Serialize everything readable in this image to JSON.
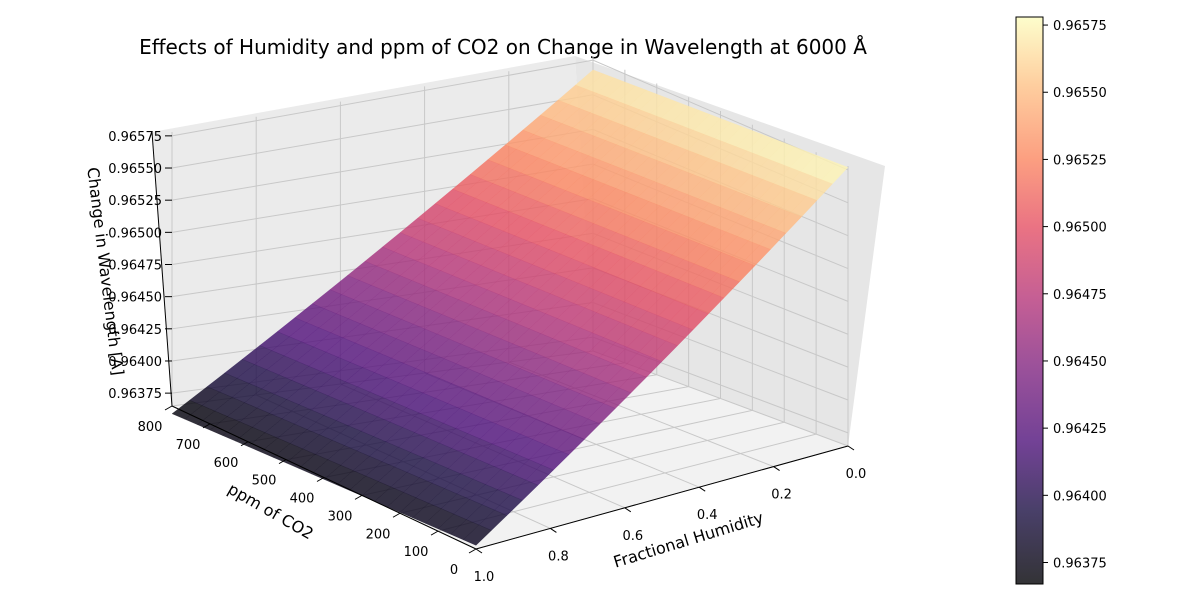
{
  "chart_data": {
    "type": "surface3d",
    "title": "Effects of Humidity and ppm of CO2 on Change in Wavelength at 6000 Å",
    "xlabel": "Fractional Humidity",
    "ylabel": "ppm of CO2",
    "zlabel": "Change in Wavelength [A]",
    "colormap": "magma",
    "x_ticks": [
      "0.0",
      "0.2",
      "0.4",
      "0.6",
      "0.8",
      "1.0"
    ],
    "y_ticks": [
      "0",
      "100",
      "200",
      "300",
      "400",
      "500",
      "600",
      "700",
      "800"
    ],
    "z_ticks": [
      "0.96375",
      "0.96400",
      "0.96425",
      "0.96450",
      "0.96475",
      "0.96500",
      "0.96525",
      "0.96550",
      "0.96575"
    ],
    "colorbar_ticks": [
      "0.96375",
      "0.96400",
      "0.96425",
      "0.96450",
      "0.96475",
      "0.96500",
      "0.96525",
      "0.96550",
      "0.96575"
    ],
    "xlim": [
      0,
      1
    ],
    "ylim": [
      0,
      800
    ],
    "zlim": [
      0.96365,
      0.96578
    ],
    "surface": {
      "description_values": "z at grid corners",
      "corners": [
        {
          "humidity": 0.0,
          "ppm": 0,
          "z": 0.96577
        },
        {
          "humidity": 1.0,
          "ppm": 0,
          "z": 0.96368
        },
        {
          "humidity": 0.0,
          "ppm": 800,
          "z": 0.96568
        },
        {
          "humidity": 1.0,
          "ppm": 800,
          "z": 0.96359
        }
      ]
    },
    "colors": {
      "pane": "#f2f2f2",
      "grid": "#c8c8c8",
      "axis": "#000000"
    }
  }
}
